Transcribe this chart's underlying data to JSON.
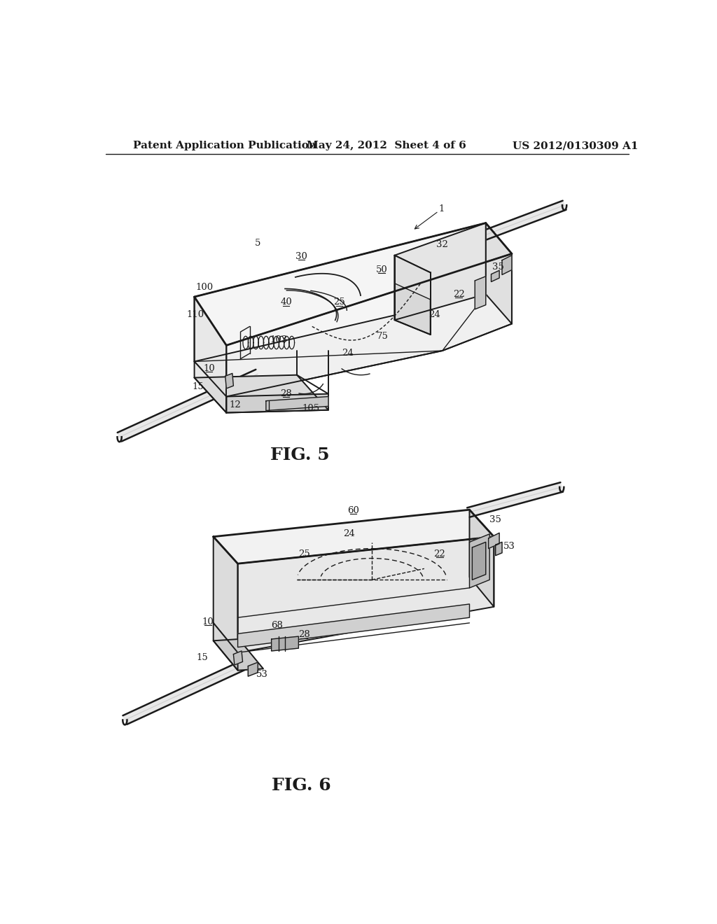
{
  "background_color": "#ffffff",
  "line_color": "#1a1a1a",
  "text_color": "#1a1a1a",
  "header_left": "Patent Application Publication",
  "header_center": "May 24, 2012  Sheet 4 of 6",
  "header_right": "US 2012/0130309 A1",
  "fig5_label": "FIG. 5",
  "fig6_label": "FIG. 6",
  "header_fontsize": 11,
  "fig_label_fontsize": 18,
  "ref_fontsize": 9.5
}
